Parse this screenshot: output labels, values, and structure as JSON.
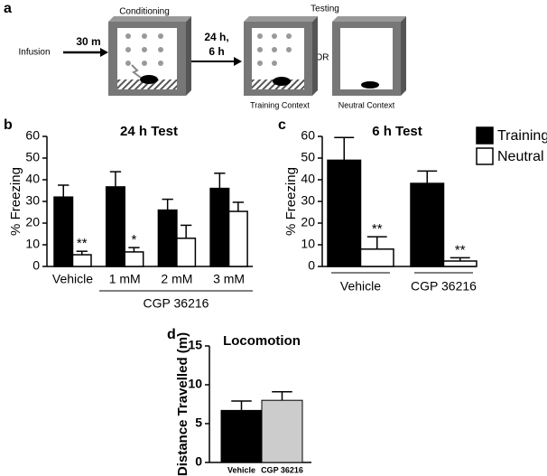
{
  "diagram": {
    "panel": "a",
    "conditioning": "Conditioning",
    "testing": "Testing",
    "infusion": "Infusion",
    "delay1": "30 m",
    "delay2_line1": "24 h,",
    "delay2_line2": "6 h",
    "or": "OR",
    "training_context": "Training Context",
    "neutral_context": "Neutral Context"
  },
  "chart_data": [
    {
      "type": "bar",
      "panel": "b",
      "title": "24 h Test",
      "ylabel": "% Freezing",
      "categories": [
        "Vehicle",
        "1 mM",
        "2 mM",
        "3 mM"
      ],
      "group_label": "CGP 36216",
      "series": [
        {
          "name": "Training",
          "color": "#000000",
          "values": [
            32,
            36.7,
            26,
            36
          ],
          "errors": [
            5.5,
            7,
            5,
            7
          ]
        },
        {
          "name": "Neutral",
          "color": "#ffffff",
          "values": [
            5.4,
            6.7,
            13,
            25.4
          ],
          "errors": [
            1.6,
            2,
            6,
            4.2
          ],
          "annotations": [
            "**",
            "*",
            null,
            null
          ]
        }
      ],
      "ylim": [
        0,
        60
      ],
      "yticks": [
        0,
        10,
        20,
        30,
        40,
        50,
        60
      ]
    },
    {
      "type": "bar",
      "panel": "c",
      "title": "6 h Test",
      "ylabel": "% Freezing",
      "categories": [
        "Vehicle",
        "CGP 36216"
      ],
      "series": [
        {
          "name": "Training",
          "color": "#000000",
          "values": [
            49,
            38.3
          ],
          "errors": [
            10.5,
            5.7
          ]
        },
        {
          "name": "Neutral",
          "color": "#ffffff",
          "values": [
            8,
            2.5
          ],
          "errors": [
            5.7,
            1.5
          ],
          "annotations": [
            "**",
            "**"
          ]
        }
      ],
      "ylim": [
        0,
        60
      ],
      "yticks": [
        0,
        10,
        20,
        30,
        40,
        50,
        60
      ],
      "legend": "right"
    },
    {
      "type": "bar",
      "panel": "d",
      "title": "Locomotion",
      "ylabel": "Distance Travelled (m)",
      "categories": [
        "Vehicle",
        "CGP 36216"
      ],
      "values": [
        6.7,
        8.0
      ],
      "errors": [
        1.2,
        1.1
      ],
      "colors": [
        "#000000",
        "#cccccc"
      ],
      "ylim": [
        0,
        15
      ],
      "yticks": [
        0,
        5,
        10,
        15
      ]
    }
  ]
}
